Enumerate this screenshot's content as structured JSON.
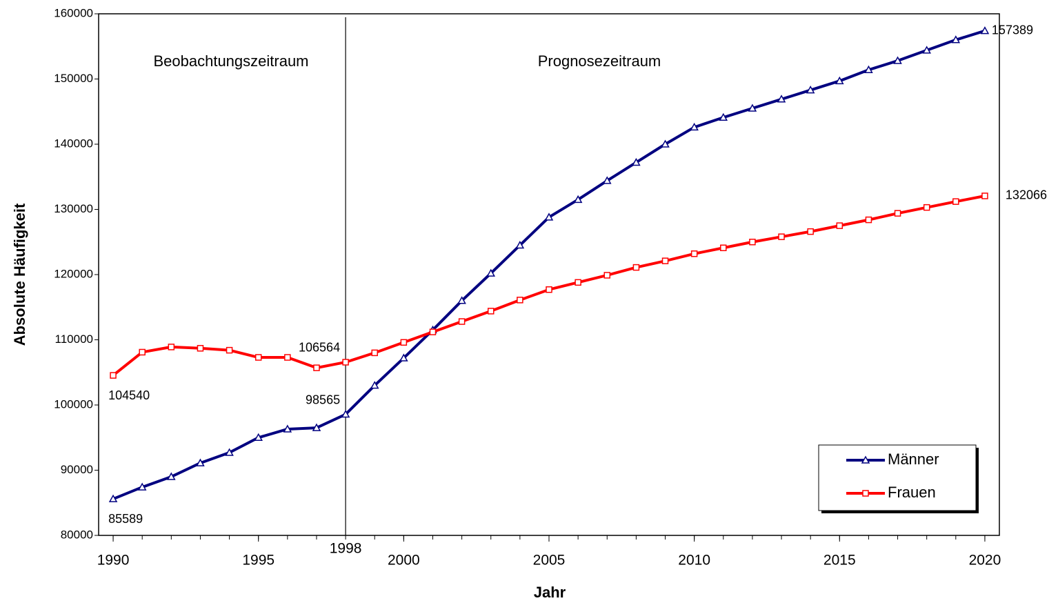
{
  "chart_data": {
    "type": "line",
    "xlabel": "Jahr",
    "ylabel": "Absolute Häufigkeit",
    "annotations": [
      "Beobachtungszeitraum",
      "Prognosezeitraum"
    ],
    "marker_x": 1998,
    "label_x": [
      1990,
      1998,
      2020
    ],
    "x": [
      1990,
      1991,
      1992,
      1993,
      1994,
      1995,
      1996,
      1997,
      1998,
      1999,
      2000,
      2001,
      2002,
      2003,
      2004,
      2005,
      2006,
      2007,
      2008,
      2009,
      2010,
      2011,
      2012,
      2013,
      2014,
      2015,
      2016,
      2017,
      2018,
      2019,
      2020
    ],
    "series": [
      {
        "name": "Männer",
        "color": "#000080",
        "marker": "triangle",
        "values": [
          85589,
          87400,
          89000,
          91100,
          92700,
          95000,
          96300,
          96500,
          98565,
          103000,
          107200,
          111500,
          116000,
          120200,
          124500,
          128800,
          131500,
          134400,
          137200,
          140000,
          142600,
          144100,
          145500,
          146900,
          148300,
          149700,
          151400,
          152800,
          154400,
          156000,
          157389
        ]
      },
      {
        "name": "Frauen",
        "color": "#ff0000",
        "marker": "square",
        "values": [
          104540,
          108100,
          108900,
          108700,
          108400,
          107300,
          107300,
          105700,
          106564,
          108000,
          109600,
          111200,
          112800,
          114400,
          116100,
          117700,
          118800,
          119900,
          121100,
          122100,
          123200,
          124100,
          125000,
          125800,
          126600,
          127500,
          128400,
          129400,
          130300,
          131200,
          132066
        ]
      }
    ],
    "xlim": [
      1989.5,
      2020.5
    ],
    "xticks": [
      1990,
      1995,
      2000,
      2005,
      2010,
      2015,
      2020
    ],
    "xminor": 1,
    "ylim": [
      80000,
      160000
    ],
    "yticks": [
      80000,
      90000,
      100000,
      110000,
      120000,
      130000,
      140000,
      150000,
      160000
    ],
    "legend": "lower right"
  }
}
